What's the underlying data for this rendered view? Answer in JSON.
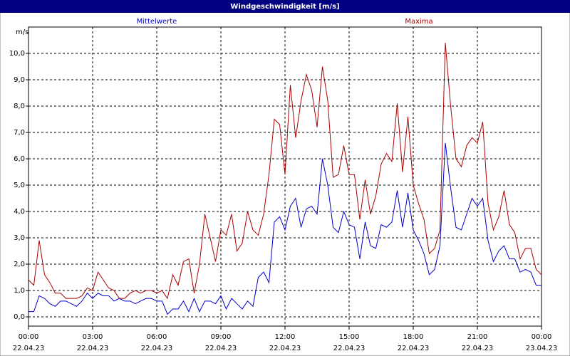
{
  "chart_data": {
    "type": "line",
    "title": "Windgeschwindigkeit [m/s]",
    "y_label": "m/s",
    "x": [
      0,
      0.25,
      0.5,
      0.75,
      1,
      1.25,
      1.5,
      1.75,
      2,
      2.25,
      2.5,
      2.75,
      3,
      3.25,
      3.5,
      3.75,
      4,
      4.25,
      4.5,
      4.75,
      5,
      5.25,
      5.5,
      5.75,
      6,
      6.25,
      6.5,
      6.75,
      7,
      7.25,
      7.5,
      7.75,
      8,
      8.25,
      8.5,
      8.75,
      9,
      9.25,
      9.5,
      9.75,
      10,
      10.25,
      10.5,
      10.75,
      11,
      11.25,
      11.5,
      11.75,
      12,
      12.25,
      12.5,
      12.75,
      13,
      13.25,
      13.5,
      13.75,
      14,
      14.25,
      14.5,
      14.75,
      15,
      15.25,
      15.5,
      15.75,
      16,
      16.25,
      16.5,
      16.75,
      17,
      17.25,
      17.5,
      17.75,
      18,
      18.25,
      18.5,
      18.75,
      19,
      19.25,
      19.5,
      19.75,
      20,
      20.25,
      20.5,
      20.75,
      21,
      21.25,
      21.5,
      21.75,
      22,
      22.25,
      22.5,
      22.75,
      23,
      23.25,
      23.5,
      23.75,
      24
    ],
    "series": [
      {
        "name": "Mittelwerte",
        "color": "#0000cc",
        "values": [
          0.2,
          0.2,
          0.8,
          0.7,
          0.5,
          0.4,
          0.6,
          0.6,
          0.5,
          0.4,
          0.6,
          0.9,
          0.7,
          0.9,
          0.8,
          0.8,
          0.6,
          0.7,
          0.6,
          0.6,
          0.5,
          0.6,
          0.7,
          0.7,
          0.6,
          0.6,
          0.1,
          0.3,
          0.3,
          0.6,
          0.2,
          0.7,
          0.2,
          0.6,
          0.6,
          0.5,
          0.8,
          0.3,
          0.7,
          0.5,
          0.3,
          0.6,
          0.4,
          1.5,
          1.7,
          1.3,
          3.6,
          3.8,
          3.3,
          4.2,
          4.5,
          3.4,
          4.1,
          4.2,
          3.9,
          6.0,
          5.0,
          3.4,
          3.2,
          4.0,
          3.5,
          3.4,
          2.2,
          3.6,
          2.7,
          2.6,
          3.5,
          3.4,
          3.6,
          4.8,
          3.4,
          4.7,
          3.3,
          2.9,
          2.4,
          1.6,
          1.8,
          2.7,
          6.6,
          4.9,
          3.4,
          3.3,
          3.9,
          4.5,
          4.2,
          4.5,
          2.9,
          2.1,
          2.5,
          2.7,
          2.2,
          2.2,
          1.7,
          1.8,
          1.7,
          1.2,
          1.2
        ]
      },
      {
        "name": "Maxima",
        "color": "#aa0000",
        "values": [
          1.4,
          1.2,
          2.9,
          1.6,
          1.3,
          0.9,
          0.9,
          0.7,
          0.7,
          0.7,
          0.8,
          1.1,
          1.0,
          1.7,
          1.4,
          1.1,
          1.0,
          0.7,
          0.7,
          0.9,
          1.0,
          0.9,
          1.0,
          1.0,
          0.9,
          1.0,
          0.7,
          1.6,
          1.2,
          2.1,
          2.2,
          0.9,
          2.0,
          3.9,
          3.0,
          2.1,
          3.3,
          3.1,
          3.9,
          2.5,
          2.8,
          4.0,
          3.3,
          3.1,
          3.9,
          5.4,
          7.5,
          7.3,
          5.4,
          8.8,
          6.8,
          8.2,
          9.2,
          8.6,
          7.2,
          9.5,
          8.2,
          5.3,
          5.4,
          6.5,
          5.4,
          5.4,
          3.7,
          5.2,
          3.9,
          4.6,
          5.8,
          6.2,
          5.9,
          8.1,
          5.5,
          7.6,
          5.0,
          4.3,
          3.7,
          2.4,
          2.6,
          3.3,
          10.4,
          8.0,
          6.0,
          5.7,
          6.5,
          6.8,
          6.6,
          7.4,
          4.3,
          3.3,
          3.8,
          4.8,
          3.5,
          3.2,
          2.2,
          2.6,
          2.6,
          1.8,
          1.6
        ]
      }
    ],
    "xlim": [
      0,
      24
    ],
    "xticks": [
      {
        "value": 0,
        "label": "00:00"
      },
      {
        "value": 3,
        "label": "03:00"
      },
      {
        "value": 6,
        "label": "06:00"
      },
      {
        "value": 9,
        "label": "09:00"
      },
      {
        "value": 12,
        "label": "12:00"
      },
      {
        "value": 15,
        "label": "15:00"
      },
      {
        "value": 18,
        "label": "18:00"
      },
      {
        "value": 21,
        "label": "21:00"
      },
      {
        "value": 24,
        "label": "00:00"
      }
    ],
    "xtick_dates": [
      "22.04.23",
      "22.04.23",
      "22.04.23",
      "22.04.23",
      "22.04.23",
      "22.04.23",
      "22.04.23",
      "22.04.23",
      "23.04.23"
    ],
    "ylim": [
      -0.35,
      11
    ],
    "yticks": [
      {
        "value": 0,
        "label": "0,0"
      },
      {
        "value": 1,
        "label": "1,0"
      },
      {
        "value": 2,
        "label": "2,0"
      },
      {
        "value": 3,
        "label": "3,0"
      },
      {
        "value": 4,
        "label": "4,0"
      },
      {
        "value": 5,
        "label": "5,0"
      },
      {
        "value": 6,
        "label": "6,0"
      },
      {
        "value": 7,
        "label": "7,0"
      },
      {
        "value": 8,
        "label": "8,0"
      },
      {
        "value": 9,
        "label": "9,0"
      },
      {
        "value": 10,
        "label": "10,0"
      }
    ],
    "grid": true
  }
}
